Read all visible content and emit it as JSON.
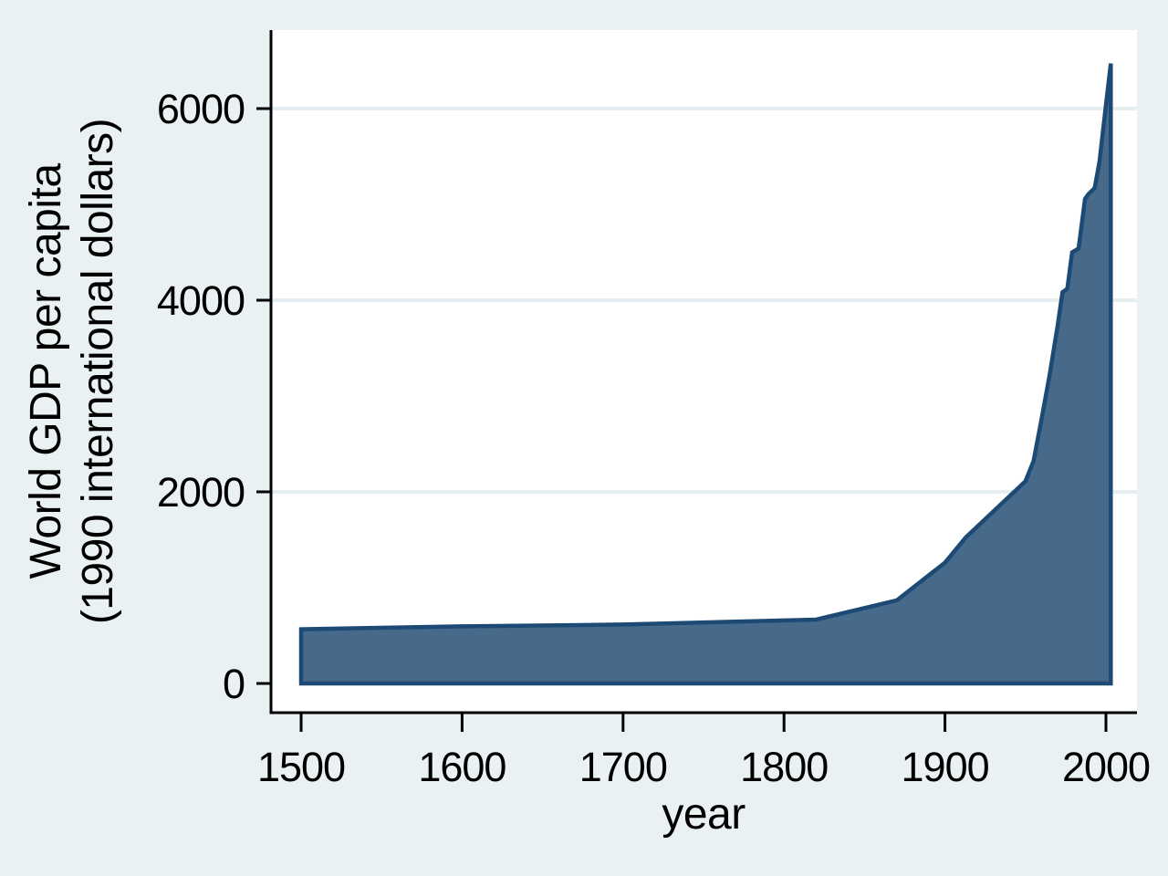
{
  "page": {
    "background_color": "#eaf1f3"
  },
  "chart_data": {
    "type": "area",
    "title": "",
    "xlabel": "year",
    "ylabel_lines": [
      "World GDP per capita",
      "(1990 international dollars)"
    ],
    "series": [
      {
        "name": "World GDP per capita (1990 international dollars)",
        "x": [
          1500,
          1600,
          1700,
          1820,
          1870,
          1900,
          1913,
          1950,
          1955,
          1960,
          1965,
          1970,
          1973,
          1976,
          1979,
          1983,
          1987,
          1989,
          1993,
          1996,
          2000,
          2003
        ],
        "y": [
          566,
          596,
          615,
          667,
          867,
          1261,
          1526,
          2111,
          2320,
          2760,
          3220,
          3736,
          4083,
          4120,
          4500,
          4540,
          5057,
          5105,
          5170,
          5448,
          6038,
          6470
        ]
      }
    ],
    "x_ticks": [
      1500,
      1600,
      1700,
      1800,
      1900,
      2000
    ],
    "y_ticks": [
      0,
      2000,
      4000,
      6000
    ],
    "xlim": [
      1481,
      2020
    ],
    "ylim": [
      0,
      6820
    ],
    "grid": "horizontal gridlines at y ticks, behind series",
    "legend_position": "none",
    "colors": {
      "area_fill": "#47698a",
      "area_outline": "#1c4a74",
      "plot_background": "#ffffff",
      "page_background": "#eaf1f3",
      "gridline": "#e4edf0",
      "axis": "#000000"
    }
  }
}
